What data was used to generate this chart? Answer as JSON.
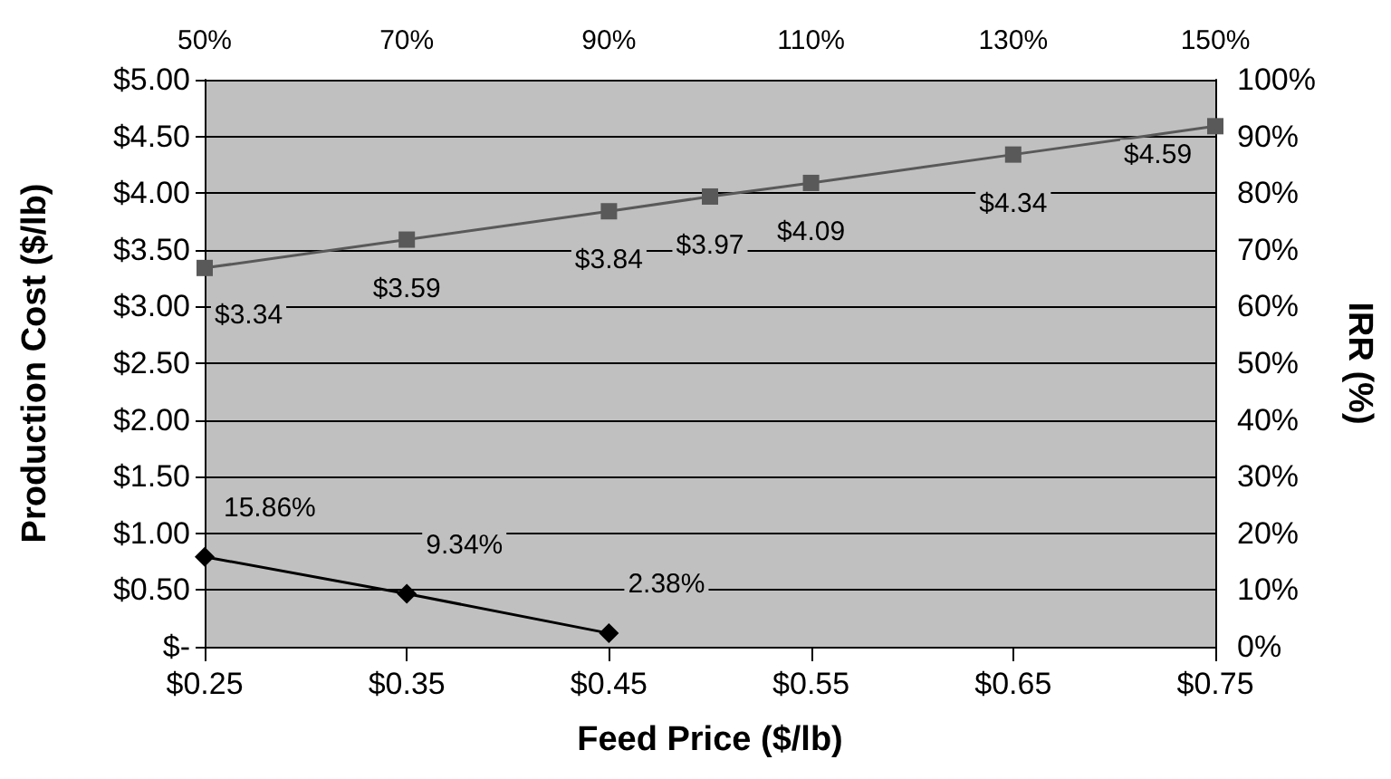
{
  "chart_data": {
    "type": "line",
    "xlabel": "Feed Price ($/lb)",
    "ylabel": "Production Cost ($/lb)",
    "y2label": "IRR (%)",
    "xlim": [
      0.25,
      0.75
    ],
    "xticks": [
      {
        "value": 0.25,
        "label": "$0.25"
      },
      {
        "value": 0.35,
        "label": "$0.35"
      },
      {
        "value": 0.45,
        "label": "$0.45"
      },
      {
        "value": 0.55,
        "label": "$0.55"
      },
      {
        "value": 0.65,
        "label": "$0.65"
      },
      {
        "value": 0.75,
        "label": "$0.75"
      }
    ],
    "x2lim": [
      50,
      150
    ],
    "x2ticks": [
      {
        "value": 50,
        "label": "50%"
      },
      {
        "value": 70,
        "label": "70%"
      },
      {
        "value": 90,
        "label": "90%"
      },
      {
        "value": 110,
        "label": "110%"
      },
      {
        "value": 130,
        "label": "130%"
      },
      {
        "value": 150,
        "label": "150%"
      }
    ],
    "ylim": [
      0,
      5
    ],
    "yticks": [
      {
        "value": 0,
        "label": "$-"
      },
      {
        "value": 0.5,
        "label": "$0.50"
      },
      {
        "value": 1,
        "label": "$1.00"
      },
      {
        "value": 1.5,
        "label": "$1.50"
      },
      {
        "value": 2,
        "label": "$2.00"
      },
      {
        "value": 2.5,
        "label": "$2.50"
      },
      {
        "value": 3,
        "label": "$3.00"
      },
      {
        "value": 3.5,
        "label": "$3.50"
      },
      {
        "value": 4,
        "label": "$4.00"
      },
      {
        "value": 4.5,
        "label": "$4.50"
      },
      {
        "value": 5,
        "label": "$5.00"
      }
    ],
    "y2lim": [
      0,
      100
    ],
    "y2ticks": [
      {
        "value": 0,
        "label": "0%"
      },
      {
        "value": 10,
        "label": "10%"
      },
      {
        "value": 20,
        "label": "20%"
      },
      {
        "value": 30,
        "label": "30%"
      },
      {
        "value": 40,
        "label": "40%"
      },
      {
        "value": 50,
        "label": "50%"
      },
      {
        "value": 60,
        "label": "60%"
      },
      {
        "value": 70,
        "label": "70%"
      },
      {
        "value": 80,
        "label": "80%"
      },
      {
        "value": 90,
        "label": "90%"
      },
      {
        "value": 100,
        "label": "100%"
      }
    ],
    "grid": "y",
    "series": [
      {
        "color": "#595959",
        "marker": "square",
        "axis": "x2",
        "x": [
          50,
          70,
          90,
          100,
          110,
          130,
          150
        ],
        "values": [
          3.34,
          3.59,
          3.84,
          3.97,
          4.09,
          4.34,
          4.59
        ],
        "value_labels": [
          "$3.34",
          "$3.59",
          "$3.84",
          "$3.97",
          "$4.09",
          "$4.34",
          "$4.59"
        ]
      },
      {
        "color": "#000000",
        "marker": "diamond",
        "axis": "y2",
        "x": [
          0.25,
          0.35,
          0.45
        ],
        "values": [
          15.86,
          9.34,
          2.38
        ],
        "value_labels": [
          "15.86%",
          "9.34%",
          "2.38%"
        ]
      }
    ]
  }
}
